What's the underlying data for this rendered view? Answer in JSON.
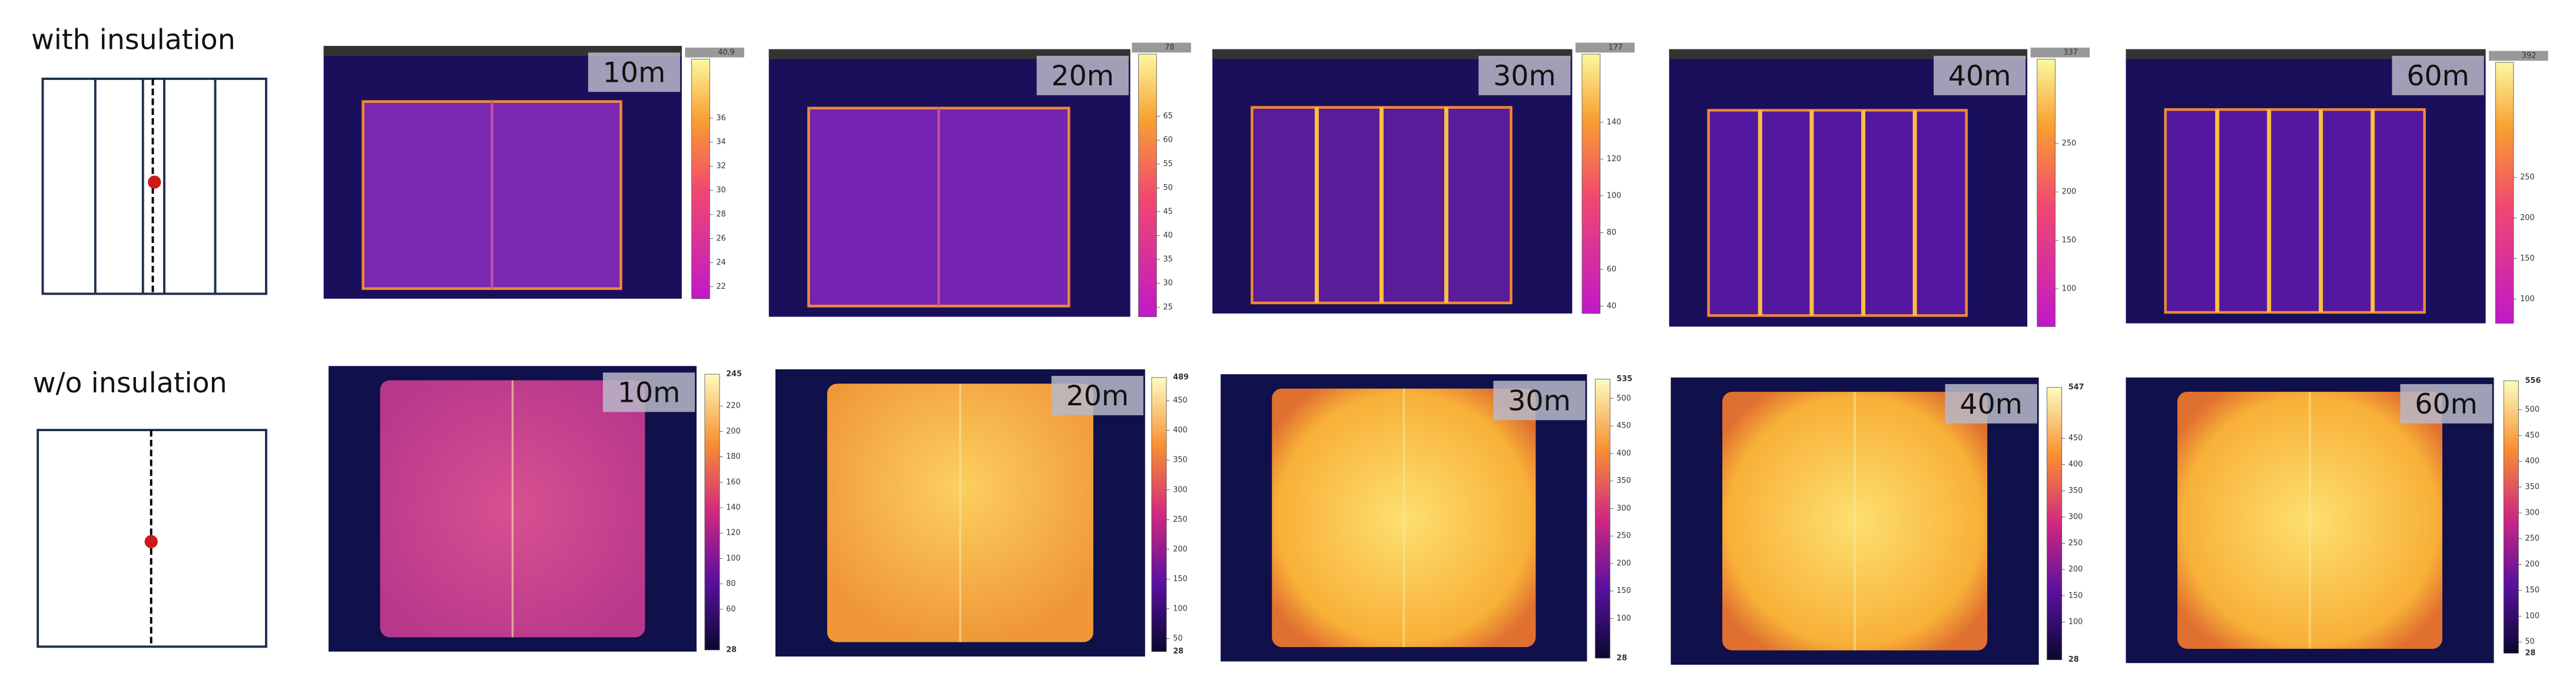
{
  "rows": [
    {
      "title": "with insulation",
      "panels": [
        {
          "label": "10m",
          "colorbar": {
            "lim": [
              21,
              40.9
            ],
            "ticks": [
              22,
              24,
              26,
              28,
              30,
              32,
              34,
              36
            ]
          }
        },
        {
          "label": "20m",
          "colorbar": {
            "lim": [
              23,
              78
            ],
            "ticks": [
              25,
              30,
              35,
              40,
              45,
              50,
              55,
              60,
              65
            ]
          }
        },
        {
          "label": "30m",
          "colorbar": {
            "lim": [
              36,
              177
            ],
            "ticks": [
              40,
              60,
              80,
              100,
              120,
              140
            ]
          }
        },
        {
          "label": "40m",
          "colorbar": {
            "lim": [
              61,
              337
            ],
            "ticks": [
              100,
              150,
              200,
              250
            ]
          }
        },
        {
          "label": "60m",
          "colorbar": {
            "lim": [
              70,
              392
            ],
            "ticks": [
              100,
              150,
              200,
              250
            ]
          }
        }
      ]
    },
    {
      "title": "w/o insulation",
      "panels": [
        {
          "label": "10m",
          "colorbar": {
            "lim": [
              28,
              245
            ],
            "ticks": [
              60,
              80,
              100,
              120,
              140,
              160,
              180,
              200,
              220
            ]
          }
        },
        {
          "label": "20m",
          "colorbar": {
            "lim": [
              28,
              489
            ],
            "ticks": [
              50,
              100,
              150,
              200,
              250,
              300,
              350,
              400,
              450
            ]
          }
        },
        {
          "label": "30m",
          "colorbar": {
            "lim": [
              28,
              535
            ],
            "ticks": [
              100,
              150,
              200,
              250,
              300,
              350,
              400,
              450,
              500
            ]
          }
        },
        {
          "label": "40m",
          "colorbar": {
            "lim": [
              28,
              547
            ],
            "ticks": [
              100,
              150,
              200,
              250,
              300,
              350,
              400,
              450
            ]
          }
        },
        {
          "label": "60m",
          "colorbar": {
            "lim": [
              28,
              556
            ],
            "ticks": [
              50,
              100,
              150,
              200,
              250,
              300,
              350,
              400,
              450,
              500
            ]
          }
        }
      ]
    }
  ]
}
